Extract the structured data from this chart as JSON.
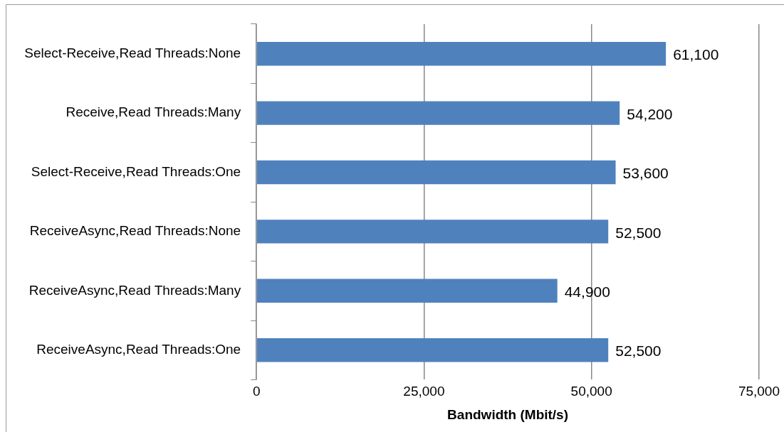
{
  "chart_data": {
    "type": "bar",
    "orientation": "horizontal",
    "xlabel": "Bandwidth (Mbit/s)",
    "categories": [
      "Select-Receive,Read Threads:None",
      "Receive,Read Threads:Many",
      "Select-Receive,Read Threads:One",
      "ReceiveAsync,Read Threads:None",
      "ReceiveAsync,Read Threads:Many",
      "ReceiveAsync,Read Threads:One"
    ],
    "values": [
      61100,
      54200,
      53600,
      52500,
      44900,
      52500
    ],
    "value_labels": [
      "61,100",
      "54,200",
      "53,600",
      "52,500",
      "44,900",
      "52,500"
    ],
    "color": "#4f81bd",
    "xlim": [
      0,
      75000
    ],
    "xticks": [
      {
        "value": 0,
        "label": "0"
      },
      {
        "value": 25000,
        "label": "25,000"
      },
      {
        "value": 50000,
        "label": "50,000"
      },
      {
        "value": 75000,
        "label": "75,000"
      }
    ],
    "grid": "x",
    "legend": false
  }
}
